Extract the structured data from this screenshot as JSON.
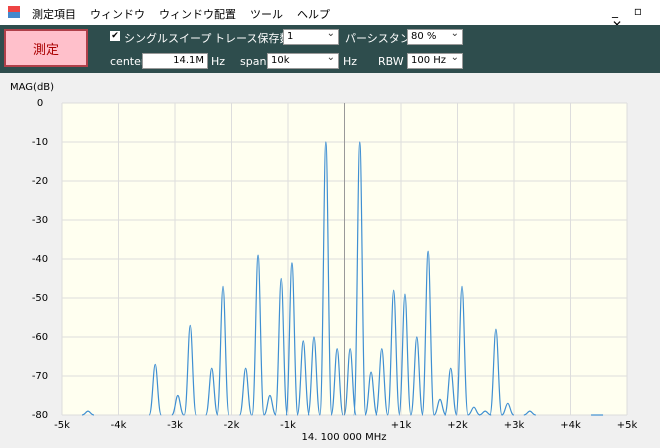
{
  "menu": [
    "測定項目",
    "ウィンドウ",
    "ウィンドウ配置",
    "ツール",
    "ヘルプ"
  ],
  "toolbar": {
    "measure_button": "測定",
    "single_sweep": {
      "label": "シングルスイープ",
      "checked": true
    },
    "trace_count": {
      "label": "トレース保存数",
      "value": "1"
    },
    "persistence": {
      "label": "パーシスタンス",
      "value": "80 %"
    },
    "center": {
      "label": "center",
      "value": "14.1M",
      "unit": "Hz"
    },
    "span": {
      "label": "span",
      "value": "10k",
      "unit": "Hz"
    },
    "rbw": {
      "label": "RBW",
      "value": "100 Hz"
    }
  },
  "chart_data": {
    "type": "spectrum",
    "ylabel": "MAG(dB)",
    "xlabel": "14. 100 000 MHz",
    "color": "#3f8fd2",
    "x": [
      -4540,
      -3350,
      -2950,
      -2730,
      -2350,
      -2150,
      -1750,
      -1530,
      -1320,
      -1120,
      -930,
      -730,
      -540,
      -330,
      -130,
      100,
      270,
      470,
      660,
      870,
      1070,
      1280,
      1480,
      1690,
      1880,
      2080,
      2290,
      2490,
      2680,
      2890,
      3280,
      4470
    ],
    "values": [
      -79,
      -67,
      -75,
      -57,
      -68,
      -47,
      -68,
      -39,
      -75,
      -45,
      -41,
      -61,
      -60,
      -10,
      -63,
      -63,
      -10,
      -69,
      -63,
      -48,
      -49,
      -60,
      -38,
      -76,
      -68,
      -47,
      -78,
      -79,
      -58,
      -77,
      -79,
      -80
    ],
    "xlim": [
      -5000,
      5000
    ],
    "ylim": [
      -80,
      0
    ],
    "xticks": [
      {
        "value": -5000,
        "label": "-5k"
      },
      {
        "value": -4000,
        "label": "-4k"
      },
      {
        "value": -3000,
        "label": "-3k"
      },
      {
        "value": -2000,
        "label": "-2k"
      },
      {
        "value": -1000,
        "label": "-1k"
      },
      {
        "value": 0,
        "label": null
      },
      {
        "value": 1000,
        "label": "+1k"
      },
      {
        "value": 2000,
        "label": "+2k"
      },
      {
        "value": 3000,
        "label": "+3k"
      },
      {
        "value": 4000,
        "label": "+4k"
      },
      {
        "value": 5000,
        "label": "+5k"
      }
    ],
    "yticks": [
      0,
      -10,
      -20,
      -30,
      -40,
      -50,
      -60,
      -70,
      -80
    ],
    "grid": true
  }
}
